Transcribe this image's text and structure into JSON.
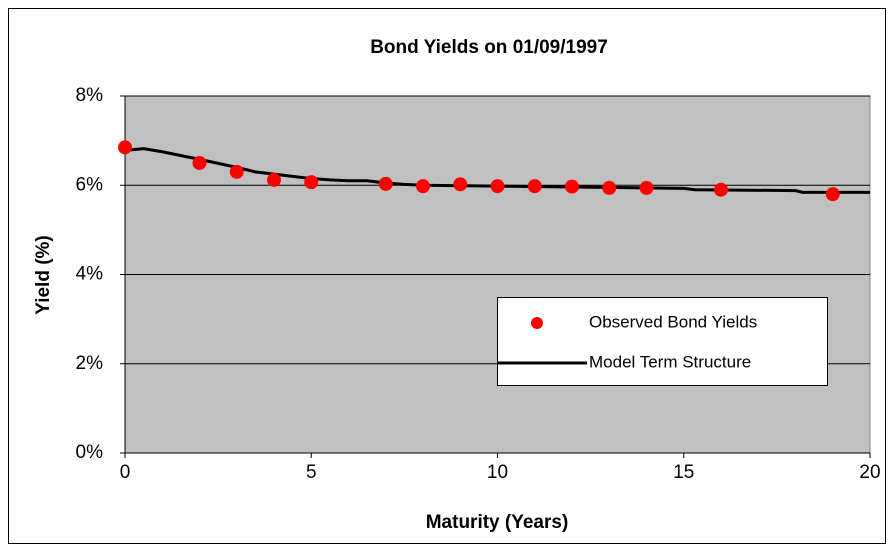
{
  "chart_data": {
    "type": "scatter",
    "title": "Bond Yields on  01/09/1997",
    "xlabel": "Maturity (Years)",
    "ylabel": "Yield (%)",
    "xlim": [
      0,
      20
    ],
    "xticks": [
      0,
      5,
      10,
      15,
      20
    ],
    "ylim": [
      0,
      8
    ],
    "yticks": [
      {
        "value": 0,
        "label": "0%"
      },
      {
        "value": 2,
        "label": "2%"
      },
      {
        "value": 4,
        "label": "4%"
      },
      {
        "value": 6,
        "label": "6%"
      },
      {
        "value": 8,
        "label": "8%"
      }
    ],
    "grid": true,
    "legend": "lower right",
    "series": [
      {
        "name": "Observed Bond Yields",
        "type": "scatter",
        "color": "#ff0000",
        "x": [
          0,
          2,
          3,
          4,
          5,
          7,
          8,
          9,
          10,
          11,
          12,
          13,
          14,
          16,
          19
        ],
        "values": [
          6.85,
          6.5,
          6.3,
          6.12,
          6.07,
          6.03,
          5.98,
          6.02,
          5.98,
          5.98,
          5.97,
          5.94,
          5.94,
          5.9,
          5.8
        ]
      },
      {
        "name": "Model Term Structure",
        "type": "line",
        "color": "#000000",
        "x": [
          0,
          0.5,
          1,
          2,
          3,
          3.5,
          4,
          4.5,
          5,
          5.5,
          6,
          6.5,
          7,
          7.5,
          8,
          10,
          15,
          15.3,
          18,
          18.2,
          20
        ],
        "values": [
          6.78,
          6.82,
          6.75,
          6.58,
          6.4,
          6.3,
          6.25,
          6.2,
          6.15,
          6.12,
          6.1,
          6.1,
          6.05,
          6.02,
          6.0,
          5.98,
          5.93,
          5.9,
          5.88,
          5.84,
          5.84
        ]
      }
    ]
  }
}
